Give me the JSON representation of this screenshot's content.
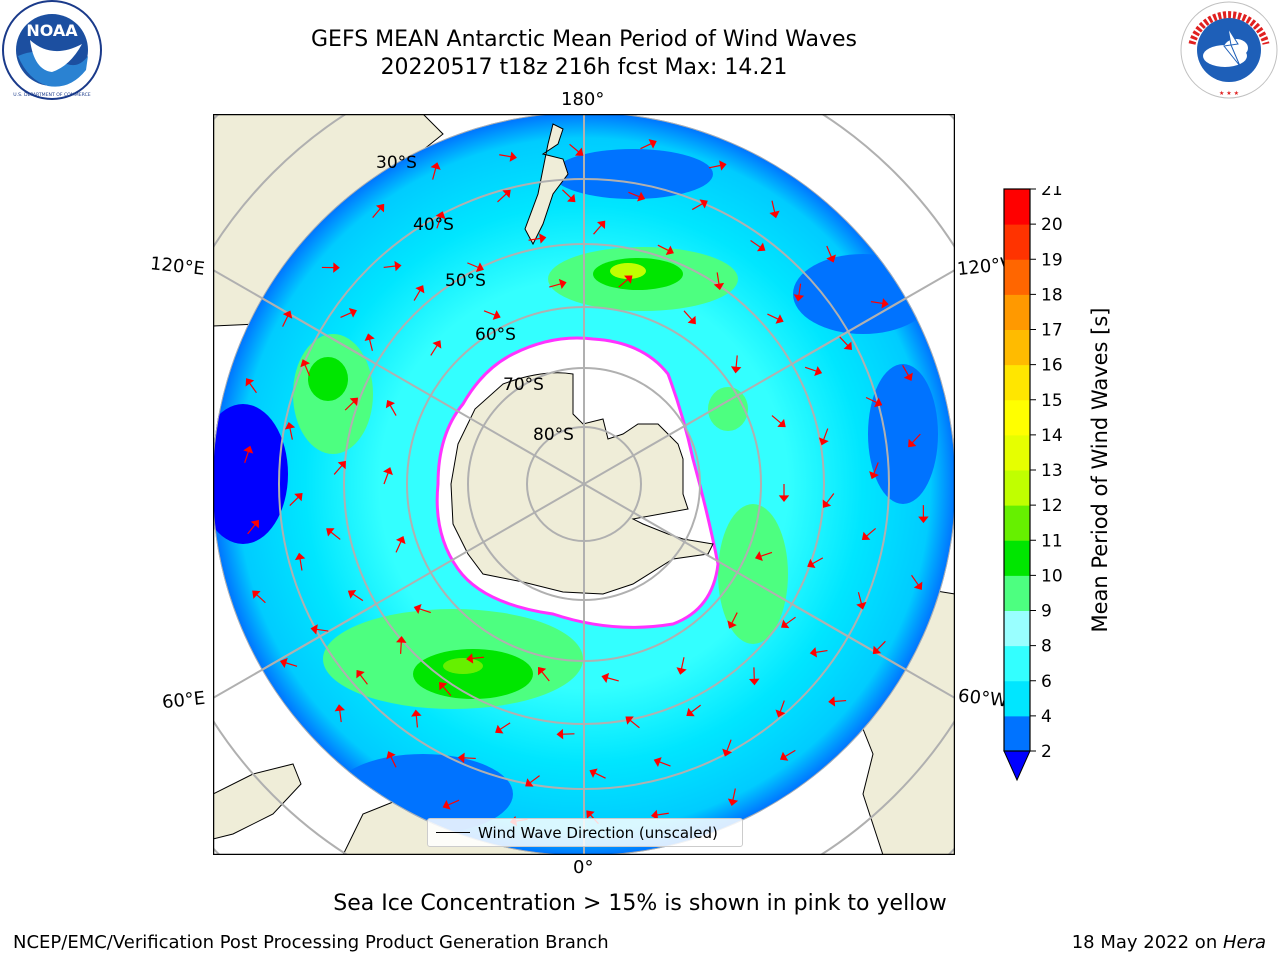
{
  "title": {
    "line1": "GEFS MEAN Antarctic Mean Period of Wind Waves",
    "line2": "20220517 t18z 216h fcst   Max: 14.21"
  },
  "logos": {
    "left": "noara-logo",
    "left_ring_text": "NATIONAL OCEANIC AND ATMOSPHERIC ADMINISTRATION • U.S. DEPARTMENT OF COMMERCE",
    "left_center_text": "NOAA",
    "right": "nws-logo",
    "right_ring_text": "NATIONAL WEATHER SERVICE"
  },
  "map": {
    "projection": "south-polar-stereographic",
    "longitude_labels": {
      "top": "180°",
      "bottom": "0°",
      "left_upper": "120°E",
      "left_lower": "60°E",
      "right_upper": "120°W",
      "right_lower": "60°W"
    },
    "latitude_labels": [
      "30°S",
      "40°S",
      "50°S",
      "60°S",
      "70°S",
      "80°S"
    ],
    "legend_label": "Wind Wave Direction (unscaled)",
    "colors": {
      "land": "#efedd8",
      "sea_ice": "#ffffff",
      "ice_edge": "#ff33ff",
      "arrow": "#ff0000"
    }
  },
  "colorbar": {
    "label": "Mean Period of Wind Waves [s]",
    "ticks": [
      "2",
      "4",
      "6",
      "8",
      "9",
      "10",
      "11",
      "12",
      "13",
      "14",
      "15",
      "16",
      "17",
      "18",
      "19",
      "20",
      "21"
    ],
    "colors": [
      "#0073ff",
      "#00e6ff",
      "#33ffff",
      "#99ffff",
      "#4dff80",
      "#00e600",
      "#66f000",
      "#c0ff00",
      "#e6ff00",
      "#ffff00",
      "#ffe600",
      "#ffbb00",
      "#ff9900",
      "#ff6600",
      "#ff3300",
      "#ff0000"
    ],
    "under_color": "#0000ff"
  },
  "notes": {
    "sea_ice": "Sea Ice Concentration > 15% is shown in pink to yellow",
    "footer_left": "NCEP/EMC/Verification Post Processing Product Generation Branch",
    "footer_right_date": "18 May 2022 on ",
    "footer_right_machine": "Hera"
  }
}
